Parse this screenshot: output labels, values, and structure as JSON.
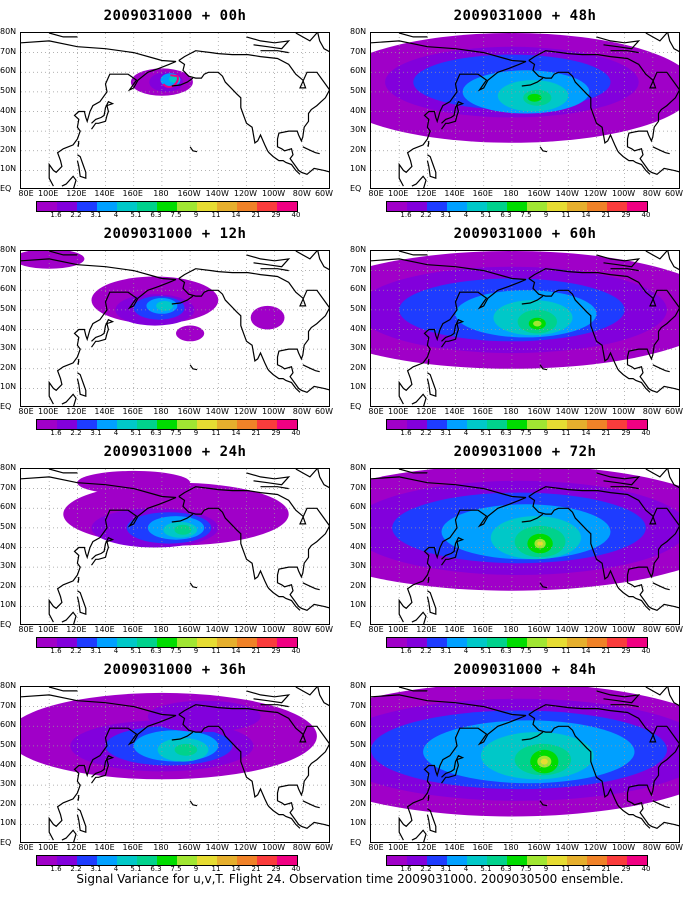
{
  "panels": [
    {
      "title": "2009031000 + 00h",
      "level": 0
    },
    {
      "title": "2009031000 + 48h",
      "level": 4
    },
    {
      "title": "2009031000 + 12h",
      "level": 1
    },
    {
      "title": "2009031000 + 60h",
      "level": 5
    },
    {
      "title": "2009031000 + 24h",
      "level": 2
    },
    {
      "title": "2009031000 + 72h",
      "level": 6
    },
    {
      "title": "2009031000 + 36h",
      "level": 3
    },
    {
      "title": "2009031000 + 84h",
      "level": 7
    }
  ],
  "lat_labels": [
    "80N",
    "70N",
    "60N",
    "50N",
    "40N",
    "30N",
    "20N",
    "10N",
    "EQ"
  ],
  "lon_labels": [
    "80E",
    "100E",
    "120E",
    "140E",
    "160E",
    "180",
    "160W",
    "140W",
    "120W",
    "100W",
    "80W",
    "60W"
  ],
  "colorbar": {
    "colors": [
      "#a000c8",
      "#8200dc",
      "#1e3cff",
      "#00a0ff",
      "#00c8c8",
      "#00d28c",
      "#00dc00",
      "#a0e632",
      "#e6dc32",
      "#e6af2d",
      "#f08228",
      "#fa3c3c",
      "#f00082"
    ],
    "labels": [
      "1.6",
      "2.2",
      "3.1",
      "4",
      "5.1",
      "6.3",
      "7.5",
      "9",
      "11",
      "14",
      "21",
      "29",
      "40"
    ]
  },
  "footer": "Signal Variance for u,v,T. Flight 24. Observation time 2009031000. 2009030500 ensemble."
}
